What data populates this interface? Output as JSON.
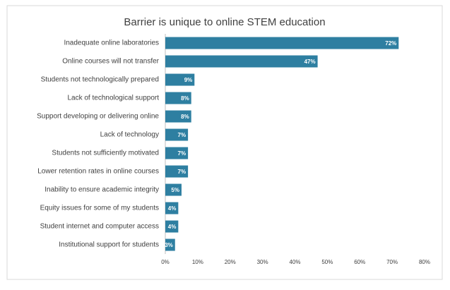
{
  "chart_data": {
    "type": "barh",
    "title": "Barrier is unique to online STEM education",
    "categories": [
      "Inadequate online laboratories",
      "Online courses will not transfer",
      "Students not technologically prepared",
      "Lack of technological support",
      "Support developing or delivering online",
      "Lack of technology",
      "Students not sufficiently motivated",
      "Lower retention rates in online courses",
      "Inability to ensure academic integrity",
      "Equity issues for some of my students",
      "Student internet and computer access",
      "Institutional support for students"
    ],
    "values": [
      72,
      47,
      9,
      8,
      8,
      7,
      7,
      7,
      5,
      4,
      4,
      3
    ],
    "value_labels": [
      "72%",
      "47%",
      "9%",
      "8%",
      "8%",
      "7%",
      "7%",
      "7%",
      "5%",
      "4%",
      "4%",
      "3%"
    ],
    "color": "#2e7fa1",
    "xlim": [
      0,
      80
    ],
    "xticks": [
      {
        "value": 0,
        "label": "0%"
      },
      {
        "value": 10,
        "label": "10%"
      },
      {
        "value": 20,
        "label": "20%"
      },
      {
        "value": 30,
        "label": "30%"
      },
      {
        "value": 40,
        "label": "40%"
      },
      {
        "value": 50,
        "label": "50%"
      },
      {
        "value": 60,
        "label": "60%"
      },
      {
        "value": 70,
        "label": "70%"
      },
      {
        "value": 80,
        "label": "80%"
      }
    ],
    "grid": false
  }
}
